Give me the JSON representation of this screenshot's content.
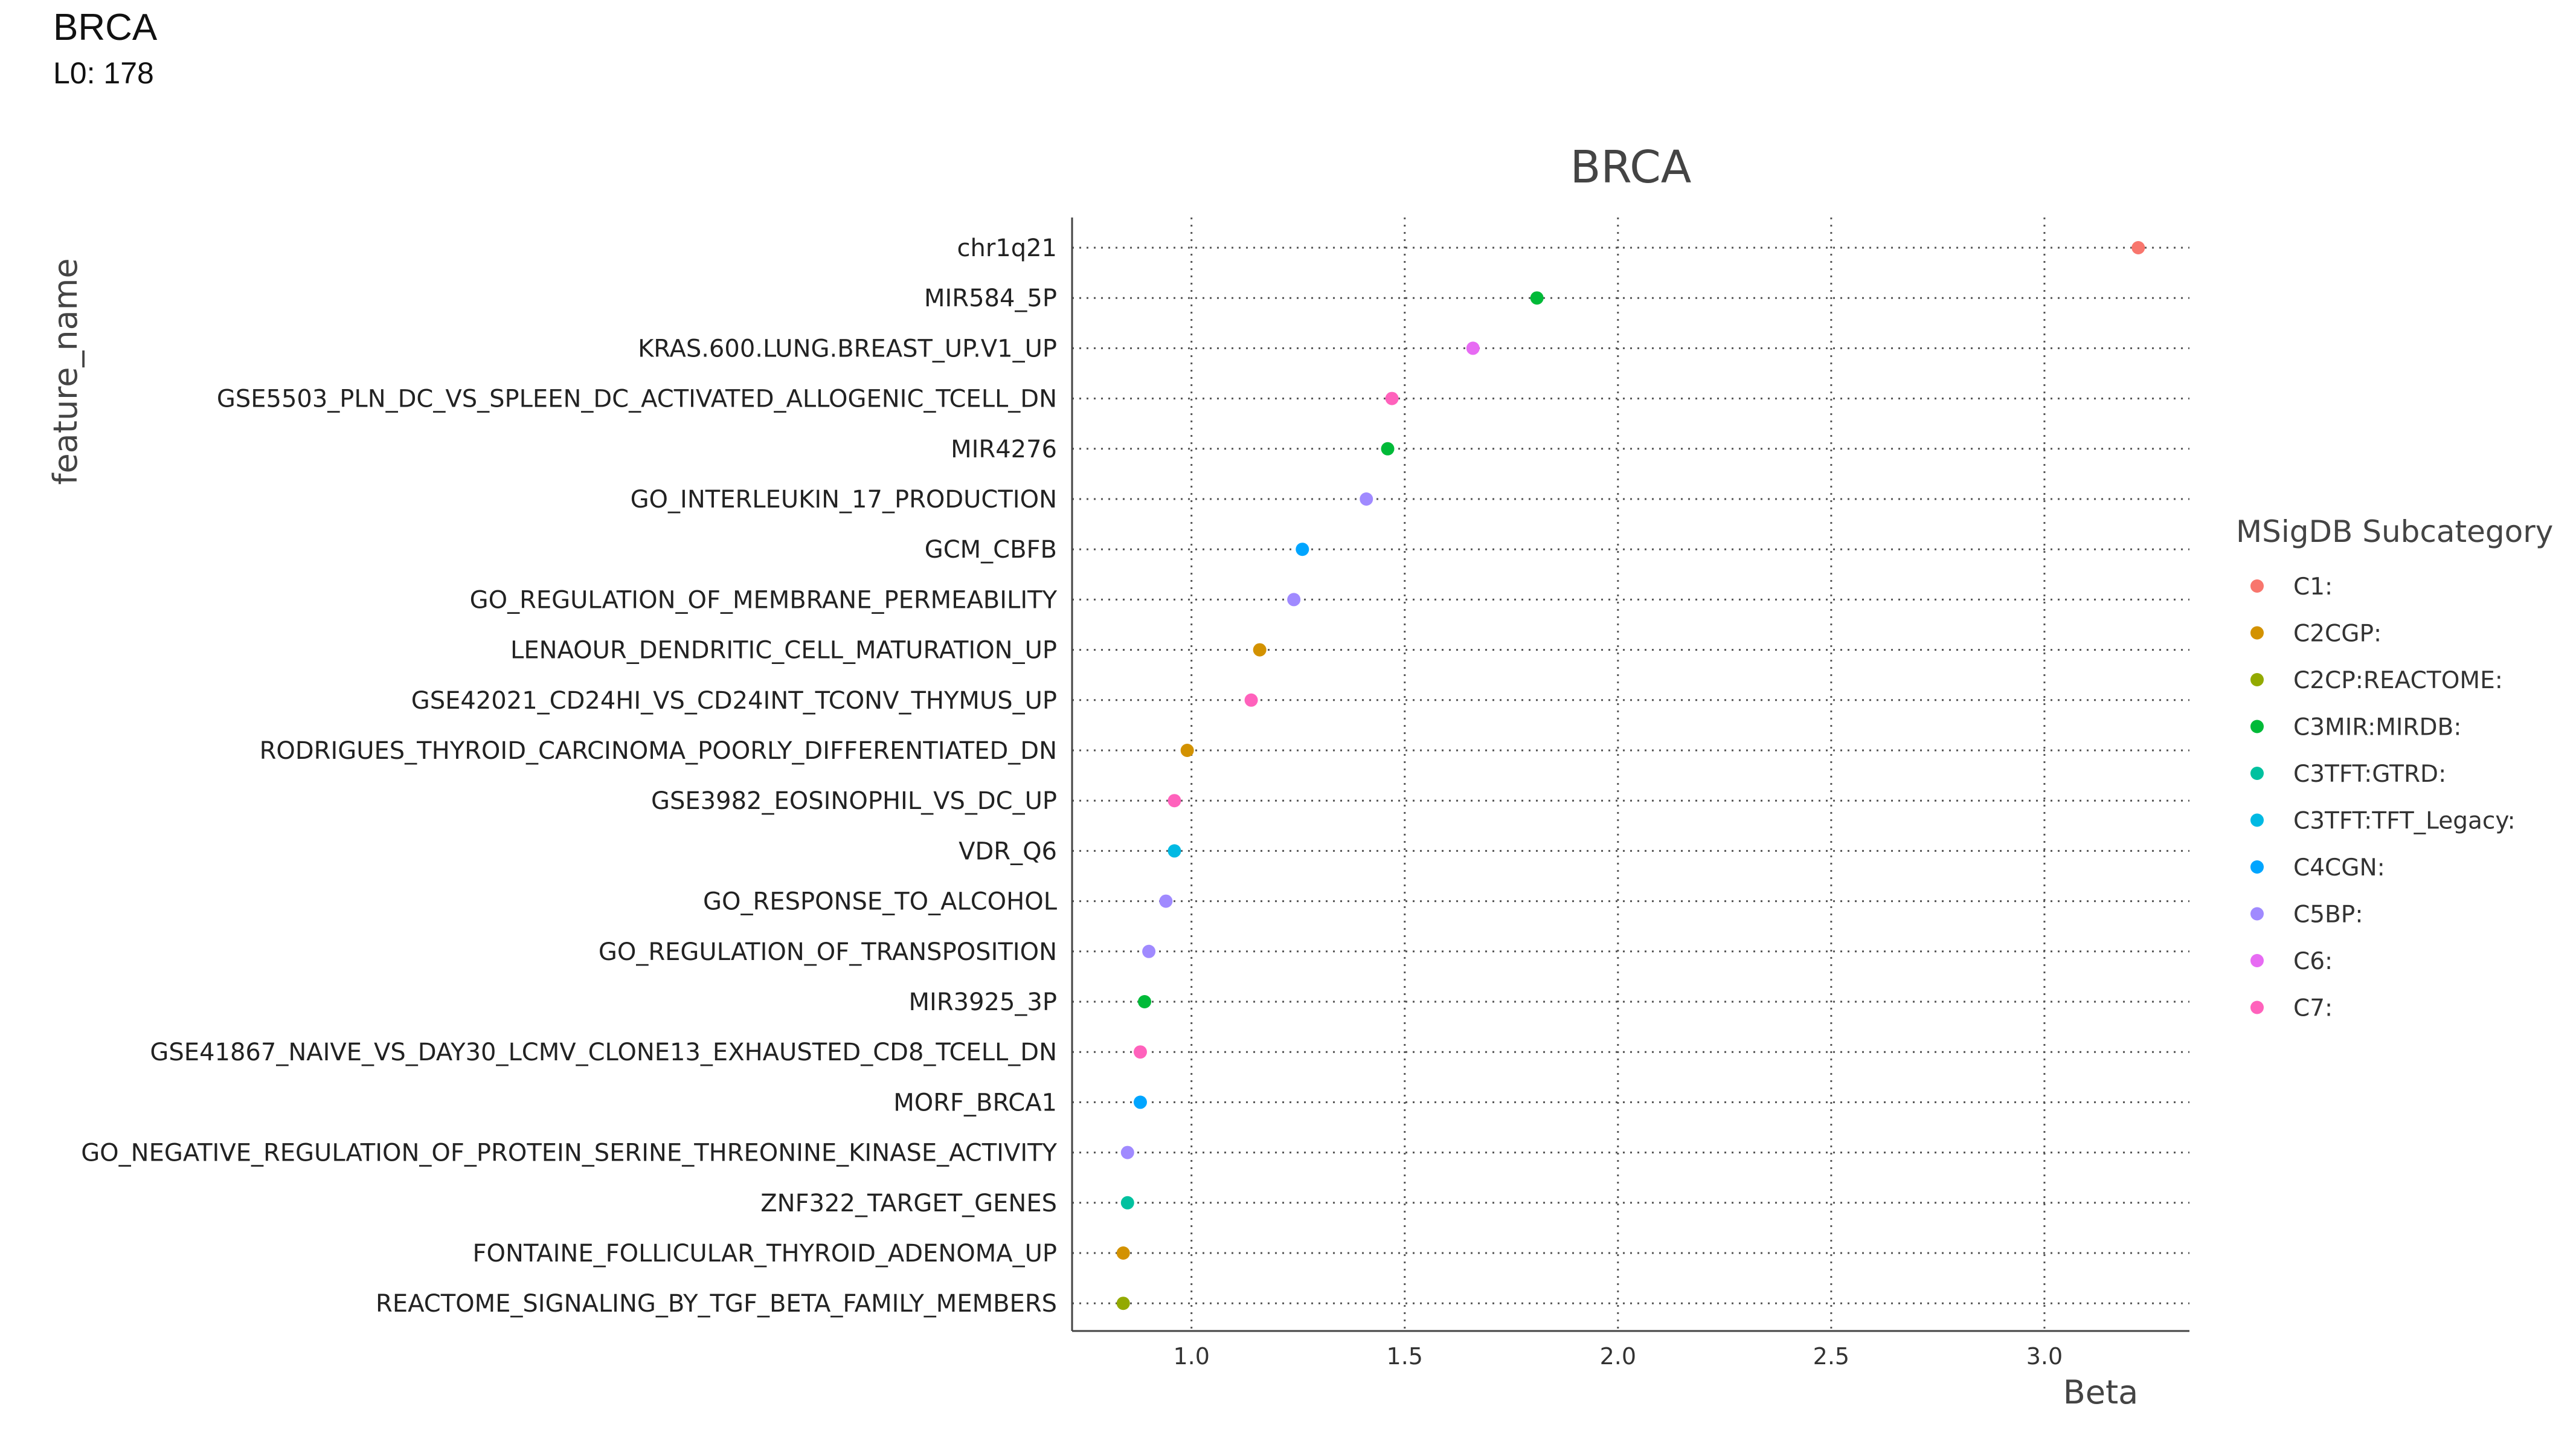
{
  "header": {
    "title": "BRCA",
    "subtitle": "L0: 178"
  },
  "chart_data": {
    "type": "scatter",
    "title": "BRCA",
    "xlabel": "Beta",
    "ylabel": "feature_name",
    "xlim": [
      0.72,
      3.34
    ],
    "xticks": [
      "1.0",
      "1.5",
      "2.0",
      "2.5",
      "3.0"
    ],
    "xtick_values": [
      1.0,
      1.5,
      2.0,
      2.5,
      3.0
    ],
    "grid": true,
    "legend": {
      "title": "MSigDB Subcategory",
      "placement": "right",
      "entries": [
        {
          "label": "C1:",
          "color": "#F8766D"
        },
        {
          "label": "C2CGP:",
          "color": "#D39200"
        },
        {
          "label": "C2CP:REACTOME:",
          "color": "#93AA00"
        },
        {
          "label": "C3MIR:MIRDB:",
          "color": "#00BA38"
        },
        {
          "label": "C3TFT:GTRD:",
          "color": "#00C19F"
        },
        {
          "label": "C3TFT:TFT_Legacy:",
          "color": "#00B9E3"
        },
        {
          "label": "C4CGN:",
          "color": "#00A5FF"
        },
        {
          "label": "C5BP:",
          "color": "#A08AFF"
        },
        {
          "label": "C6:",
          "color": "#E76BF3"
        },
        {
          "label": "C7:",
          "color": "#FF62BC"
        }
      ]
    },
    "points": [
      {
        "feature": "chr1q21",
        "beta": 3.22,
        "category": "C1:"
      },
      {
        "feature": "MIR584_5P",
        "beta": 1.81,
        "category": "C3MIR:MIRDB:"
      },
      {
        "feature": "KRAS.600.LUNG.BREAST_UP.V1_UP",
        "beta": 1.66,
        "category": "C6:"
      },
      {
        "feature": "GSE5503_PLN_DC_VS_SPLEEN_DC_ACTIVATED_ALLOGENIC_TCELL_DN",
        "beta": 1.47,
        "category": "C7:"
      },
      {
        "feature": "MIR4276",
        "beta": 1.46,
        "category": "C3MIR:MIRDB:"
      },
      {
        "feature": "GO_INTERLEUKIN_17_PRODUCTION",
        "beta": 1.41,
        "category": "C5BP:"
      },
      {
        "feature": "GCM_CBFB",
        "beta": 1.26,
        "category": "C4CGN:"
      },
      {
        "feature": "GO_REGULATION_OF_MEMBRANE_PERMEABILITY",
        "beta": 1.24,
        "category": "C5BP:"
      },
      {
        "feature": "LENAOUR_DENDRITIC_CELL_MATURATION_UP",
        "beta": 1.16,
        "category": "C2CGP:"
      },
      {
        "feature": "GSE42021_CD24HI_VS_CD24INT_TCONV_THYMUS_UP",
        "beta": 1.14,
        "category": "C7:"
      },
      {
        "feature": "RODRIGUES_THYROID_CARCINOMA_POORLY_DIFFERENTIATED_DN",
        "beta": 0.99,
        "category": "C2CGP:"
      },
      {
        "feature": "GSE3982_EOSINOPHIL_VS_DC_UP",
        "beta": 0.96,
        "category": "C7:"
      },
      {
        "feature": "VDR_Q6",
        "beta": 0.96,
        "category": "C3TFT:TFT_Legacy:"
      },
      {
        "feature": "GO_RESPONSE_TO_ALCOHOL",
        "beta": 0.94,
        "category": "C5BP:"
      },
      {
        "feature": "GO_REGULATION_OF_TRANSPOSITION",
        "beta": 0.9,
        "category": "C5BP:"
      },
      {
        "feature": "MIR3925_3P",
        "beta": 0.89,
        "category": "C3MIR:MIRDB:"
      },
      {
        "feature": "GSE41867_NAIVE_VS_DAY30_LCMV_CLONE13_EXHAUSTED_CD8_TCELL_DN",
        "beta": 0.88,
        "category": "C7:"
      },
      {
        "feature": "MORF_BRCA1",
        "beta": 0.88,
        "category": "C4CGN:"
      },
      {
        "feature": "GO_NEGATIVE_REGULATION_OF_PROTEIN_SERINE_THREONINE_KINASE_ACTIVITY",
        "beta": 0.85,
        "category": "C5BP:"
      },
      {
        "feature": "ZNF322_TARGET_GENES",
        "beta": 0.85,
        "category": "C3TFT:GTRD:"
      },
      {
        "feature": "FONTAINE_FOLLICULAR_THYROID_ADENOMA_UP",
        "beta": 0.84,
        "category": "C2CGP:"
      },
      {
        "feature": "REACTOME_SIGNALING_BY_TGF_BETA_FAMILY_MEMBERS",
        "beta": 0.84,
        "category": "C2CP:REACTOME:"
      }
    ]
  }
}
